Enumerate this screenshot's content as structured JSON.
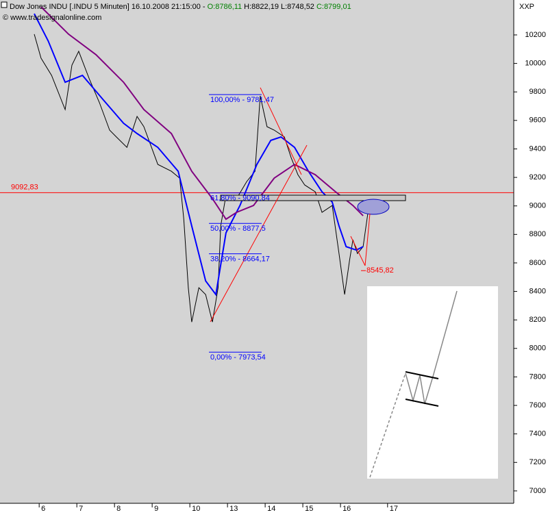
{
  "header": {
    "title": "Dow Jones INDU [.INDU  5 Minuten] 16.10.2008 21:15:00 - ",
    "open": "O:8786,11",
    "highlow": "H:8822,19 L:8748,52",
    "close": "C:8799,01",
    "watermark": "© www.tradesignalonline.com",
    "corner": "XXP"
  },
  "chart_data": {
    "type": "line",
    "xlim": [
      -1.04,
      12.6
    ],
    "xticks": [
      {
        "value": 0,
        "label": "6"
      },
      {
        "value": 1,
        "label": "7"
      },
      {
        "value": 2,
        "label": "8"
      },
      {
        "value": 3,
        "label": "9"
      },
      {
        "value": 4,
        "label": "10"
      },
      {
        "value": 5,
        "label": "13"
      },
      {
        "value": 6,
        "label": "14"
      },
      {
        "value": 7,
        "label": "15"
      },
      {
        "value": 8,
        "label": "16"
      },
      {
        "value": 9.25,
        "label": "17"
      }
    ],
    "ylim": [
      6913,
      10445
    ],
    "yticks": [
      7000,
      7200,
      7400,
      7600,
      7800,
      8000,
      8200,
      8400,
      8600,
      8800,
      9000,
      9200,
      9400,
      9600,
      9800,
      10000,
      10200
    ],
    "series": [
      {
        "color": "#000000",
        "x": [
          -0.13,
          0.05,
          0.33,
          0.69,
          0.87,
          1.05,
          1.33,
          1.6,
          1.87,
          2.05,
          2.33,
          2.6,
          2.78,
          3.15,
          3.51,
          3.73,
          3.84,
          3.96,
          4.05,
          4.24,
          4.42,
          4.6,
          4.75,
          4.82,
          4.96,
          5.24,
          5.51,
          5.73,
          5.87,
          6.05,
          6.24,
          6.51,
          6.69,
          6.87,
          7.05,
          7.33,
          7.51,
          7.78,
          7.96,
          8.11,
          8.24,
          8.33,
          8.45,
          8.6,
          8.73
        ],
        "values": [
          10205,
          10037,
          9916,
          9676,
          9988,
          10085,
          9892,
          9724,
          9532,
          9484,
          9411,
          9628,
          9556,
          9291,
          9243,
          9195,
          8907,
          8426,
          8185,
          8426,
          8378,
          8185,
          8426,
          8859,
          9075,
          9051,
          9171,
          9243,
          9772,
          9556,
          9532,
          9484,
          9339,
          9219,
          9147,
          9099,
          8955,
          9003,
          8666,
          8378,
          8618,
          8762,
          8666,
          8714,
          8955
        ]
      },
      {
        "color": "#0000ff",
        "x": [
          -0.13,
          0.24,
          0.69,
          1.15,
          1.69,
          2.24,
          2.6,
          3.15,
          3.69,
          4.05,
          4.42,
          4.69,
          4.96,
          5.33,
          5.78,
          6.15,
          6.42,
          6.78,
          7.15,
          7.51,
          7.78,
          7.96,
          8.15,
          8.42,
          8.6
        ],
        "values": [
          10349,
          10157,
          9868,
          9916,
          9748,
          9580,
          9508,
          9411,
          9243,
          8859,
          8474,
          8378,
          8811,
          9003,
          9291,
          9460,
          9484,
          9411,
          9243,
          9099,
          9027,
          8859,
          8714,
          8690,
          8714
        ]
      },
      {
        "color": "#800080",
        "x": [
          0.05,
          0.78,
          1.51,
          2.24,
          2.78,
          3.51,
          4.05,
          4.6,
          4.96,
          5.24,
          5.69,
          6.24,
          6.78,
          7.33,
          7.87,
          8.33,
          8.6
        ],
        "values": [
          10397,
          10205,
          10061,
          9868,
          9676,
          9508,
          9243,
          9051,
          8907,
          8955,
          9003,
          9195,
          9291,
          9219,
          9099,
          9003,
          8931
        ]
      }
    ],
    "hline": {
      "value": 9092.83,
      "label": "9092,83",
      "color": "#ff0000"
    },
    "fib": [
      {
        "value": 9781.47,
        "label": "100,00% - 9781,47"
      },
      {
        "value": 9090.84,
        "label": "61,80% - 9090,84"
      },
      {
        "value": 8877.5,
        "label": "50,00% - 8877,5"
      },
      {
        "value": 8664.17,
        "label": "38,20% - 8664,17"
      },
      {
        "value": 7973.54,
        "label": "0,00% - 7973,54"
      }
    ],
    "target": {
      "value": 8545.82,
      "label": "8545,82"
    }
  }
}
